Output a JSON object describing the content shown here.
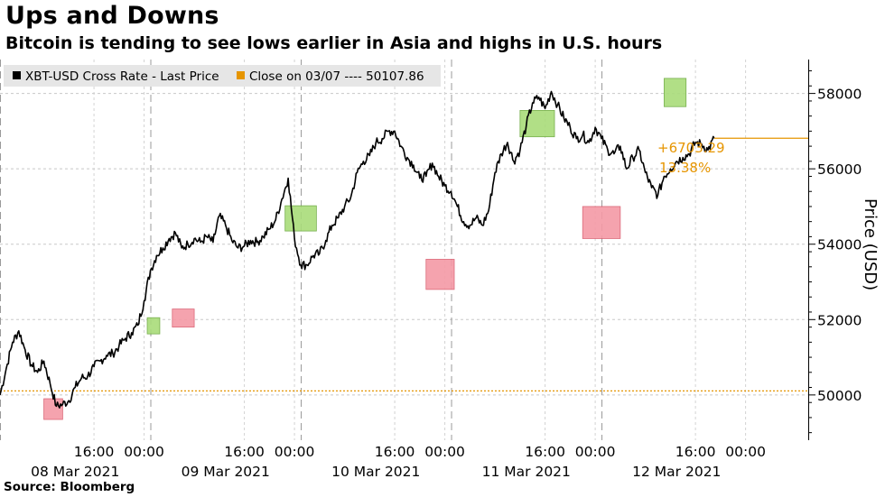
{
  "header": {
    "title": "Ups and Downs",
    "subtitle": "Bitcoin is tending to see lows earlier in Asia and highs in U.S. hours"
  },
  "footer": {
    "source": "Source: Bloomberg"
  },
  "colors": {
    "series": "#000000",
    "close_line": "#e69500",
    "high_box": "#a9dc7a",
    "low_box": "#f59aa6"
  },
  "chart_data": {
    "type": "line",
    "ylabel": "Price (USD)",
    "ylim": [
      48800,
      58900
    ],
    "yticks": [
      50000,
      52000,
      54000,
      56000,
      58000
    ],
    "ytick_labels": [
      "50000",
      "52000",
      "54000",
      "56000",
      "58000"
    ],
    "x_unit": "hours since 00:00 08 Mar 2021 (Asia)",
    "xlim": [
      -9,
      120
    ],
    "xticks": [
      {
        "x": 6,
        "label": "16:00"
      },
      {
        "x": 14,
        "label": "00:00"
      },
      {
        "x": 30,
        "label": "16:00"
      },
      {
        "x": 38,
        "label": "00:00"
      },
      {
        "x": 54,
        "label": "16:00"
      },
      {
        "x": 62,
        "label": "00:00"
      },
      {
        "x": 78,
        "label": "16:00"
      },
      {
        "x": 86,
        "label": "00:00"
      },
      {
        "x": 102,
        "label": "16:00"
      },
      {
        "x": 110,
        "label": "00:00"
      }
    ],
    "date_labels": [
      {
        "x": 3,
        "label": "08 Mar 2021"
      },
      {
        "x": 27,
        "label": "09 Mar 2021"
      },
      {
        "x": 51,
        "label": "10 Mar 2021"
      },
      {
        "x": 75,
        "label": "11 Mar 2021"
      },
      {
        "x": 99,
        "label": "12 Mar 2021"
      }
    ],
    "session_dividers_x": [
      -9,
      15,
      39,
      63,
      87
    ],
    "legend": {
      "series_label": "XBT-USD Cross Rate - Last Price",
      "close_label": "Close on 03/07 ---- 50107.86"
    },
    "close_reference": 50107.86,
    "annotation": {
      "change_abs": "+6703.29",
      "change_pct": "13.38%"
    },
    "series": [
      {
        "name": "XBT-USD Cross Rate - Last Price",
        "x": [
          -9,
          -8,
          -7,
          -6,
          -5,
          -4,
          -3,
          -2,
          -1,
          0,
          1,
          2,
          3,
          4,
          5,
          6,
          7,
          8,
          9,
          10,
          11,
          12,
          13,
          14,
          15,
          16,
          17,
          18,
          19,
          20,
          21,
          22,
          23,
          24,
          25,
          26,
          27,
          28,
          29,
          30,
          31,
          32,
          33,
          34,
          35,
          36,
          37,
          38,
          39,
          40,
          41,
          42,
          43,
          44,
          45,
          46,
          47,
          48,
          49,
          50,
          51,
          52,
          53,
          54,
          55,
          56,
          57,
          58,
          59,
          60,
          61,
          62,
          63,
          64,
          65,
          66,
          67,
          68,
          69,
          70,
          71,
          72,
          73,
          74,
          75,
          76,
          77,
          78,
          79,
          80,
          81,
          82,
          83,
          84,
          85,
          86,
          87,
          88,
          89,
          90,
          91,
          92,
          93,
          94,
          95,
          96,
          97,
          98,
          99,
          100,
          101,
          102,
          103,
          104,
          105
        ],
        "values": [
          50000,
          50700,
          51400,
          51700,
          51200,
          50800,
          50600,
          50900,
          50300,
          49700,
          49750,
          49850,
          50200,
          50450,
          50500,
          50750,
          50900,
          51050,
          51100,
          51300,
          51500,
          51650,
          51850,
          52500,
          53300,
          53700,
          53900,
          54150,
          54300,
          53900,
          54000,
          54150,
          54050,
          54200,
          54050,
          54750,
          54500,
          54100,
          53900,
          53950,
          54100,
          54050,
          54200,
          54400,
          54650,
          55200,
          55750,
          54150,
          53450,
          53450,
          53700,
          53750,
          54100,
          54500,
          54700,
          55000,
          55250,
          55900,
          56200,
          56350,
          56700,
          56800,
          57000,
          57000,
          56600,
          56300,
          56100,
          55750,
          55800,
          56150,
          55800,
          55550,
          55400,
          55000,
          54600,
          54500,
          54700,
          54500,
          54900,
          55900,
          56400,
          56700,
          56200,
          56500,
          57150,
          57750,
          57900,
          57600,
          58050,
          57700,
          57350,
          57100,
          56800,
          56900,
          56700,
          57100,
          56800,
          56500,
          56400,
          56600,
          56000,
          56300,
          56500,
          55900,
          55500,
          55300,
          55800,
          56000,
          56200,
          56300,
          56400,
          56700,
          56650,
          56500,
          56811
        ]
      }
    ],
    "highlight_boxes": [
      {
        "kind": "low",
        "x0": -2,
        "x1": 1,
        "y0": 49350,
        "y1": 49900
      },
      {
        "kind": "high",
        "x0": 14.5,
        "x1": 16.5,
        "y0": 51620,
        "y1": 52050
      },
      {
        "kind": "low",
        "x0": 18.5,
        "x1": 22,
        "y0": 51800,
        "y1": 52280
      },
      {
        "kind": "high",
        "x0": 36.5,
        "x1": 41.5,
        "y0": 54350,
        "y1": 55020
      },
      {
        "kind": "low",
        "x0": 59,
        "x1": 63.5,
        "y0": 52800,
        "y1": 53600
      },
      {
        "kind": "high",
        "x0": 74,
        "x1": 79.5,
        "y0": 56850,
        "y1": 57550
      },
      {
        "kind": "low",
        "x0": 84,
        "x1": 90,
        "y0": 54150,
        "y1": 55000
      },
      {
        "kind": "high",
        "x0": 97,
        "x1": 100.5,
        "y0": 57650,
        "y1": 58400
      }
    ]
  }
}
